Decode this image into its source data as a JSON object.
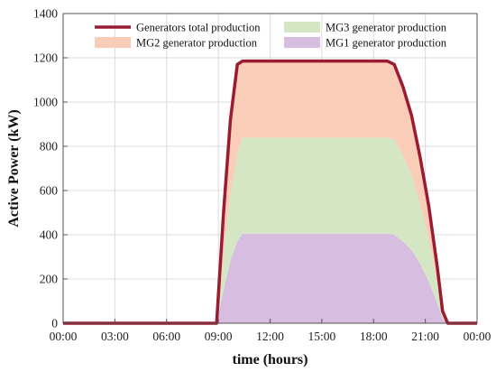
{
  "chart_data": {
    "type": "area",
    "xlabel": "time (hours)",
    "ylabel": "Active Power (kW)",
    "xlim": [
      0,
      24
    ],
    "ylim": [
      0,
      1400
    ],
    "xticks": [
      {
        "value": 0,
        "label": "00:00"
      },
      {
        "value": 3,
        "label": "03:00"
      },
      {
        "value": 6,
        "label": "06:00"
      },
      {
        "value": 9,
        "label": "09:00"
      },
      {
        "value": 12,
        "label": "12:00"
      },
      {
        "value": 15,
        "label": "15:00"
      },
      {
        "value": 18,
        "label": "18:00"
      },
      {
        "value": 21,
        "label": "21:00"
      },
      {
        "value": 24,
        "label": "00:00"
      }
    ],
    "yticks": [
      {
        "value": 0,
        "label": "0"
      },
      {
        "value": 200,
        "label": "200"
      },
      {
        "value": 400,
        "label": "400"
      },
      {
        "value": 600,
        "label": "600"
      },
      {
        "value": 800,
        "label": "800"
      },
      {
        "value": 1000,
        "label": "1000"
      },
      {
        "value": 1200,
        "label": "1200"
      },
      {
        "value": 1400,
        "label": "1400"
      }
    ],
    "grid": true,
    "legend_position": "top",
    "x": [
      0,
      8.9,
      9.3,
      9.7,
      10.1,
      10.4,
      12,
      15,
      18,
      18.8,
      19.2,
      19.7,
      20.2,
      20.7,
      21.2,
      21.7,
      22,
      22.3,
      24
    ],
    "series": [
      {
        "name": "MG1 generator production",
        "kind": "area",
        "color": "#d7bde0",
        "values": [
          0,
          0,
          150,
          280,
          370,
          405,
          405,
          405,
          405,
          405,
          400,
          370,
          330,
          270,
          190,
          90,
          20,
          0,
          0
        ]
      },
      {
        "name": "MG3 generator production",
        "kind": "area",
        "color": "#d4e6c3",
        "values": [
          0,
          0,
          160,
          300,
          400,
          435,
          435,
          435,
          435,
          435,
          430,
          390,
          340,
          270,
          190,
          90,
          20,
          0,
          0
        ]
      },
      {
        "name": "MG2 generator production",
        "kind": "area",
        "color": "#f9cdb8",
        "values": [
          0,
          0,
          190,
          340,
          400,
          345,
          345,
          345,
          345,
          345,
          340,
          310,
          270,
          210,
          150,
          70,
          15,
          0,
          0
        ]
      },
      {
        "name": "Generators total production",
        "kind": "line",
        "color": "#9b1b30",
        "values": [
          0,
          0,
          500,
          920,
          1170,
          1185,
          1185,
          1185,
          1185,
          1185,
          1170,
          1070,
          940,
          750,
          530,
          250,
          55,
          0,
          0
        ]
      }
    ],
    "legend": [
      {
        "name": "Generators total production",
        "kind": "line",
        "color": "#9b1b30"
      },
      {
        "name": "MG3 generator production",
        "kind": "area",
        "color": "#d4e6c3"
      },
      {
        "name": "MG2 generator production",
        "kind": "area",
        "color": "#f9cdb8"
      },
      {
        "name": "MG1 generator production",
        "kind": "area",
        "color": "#d7bde0"
      }
    ]
  }
}
